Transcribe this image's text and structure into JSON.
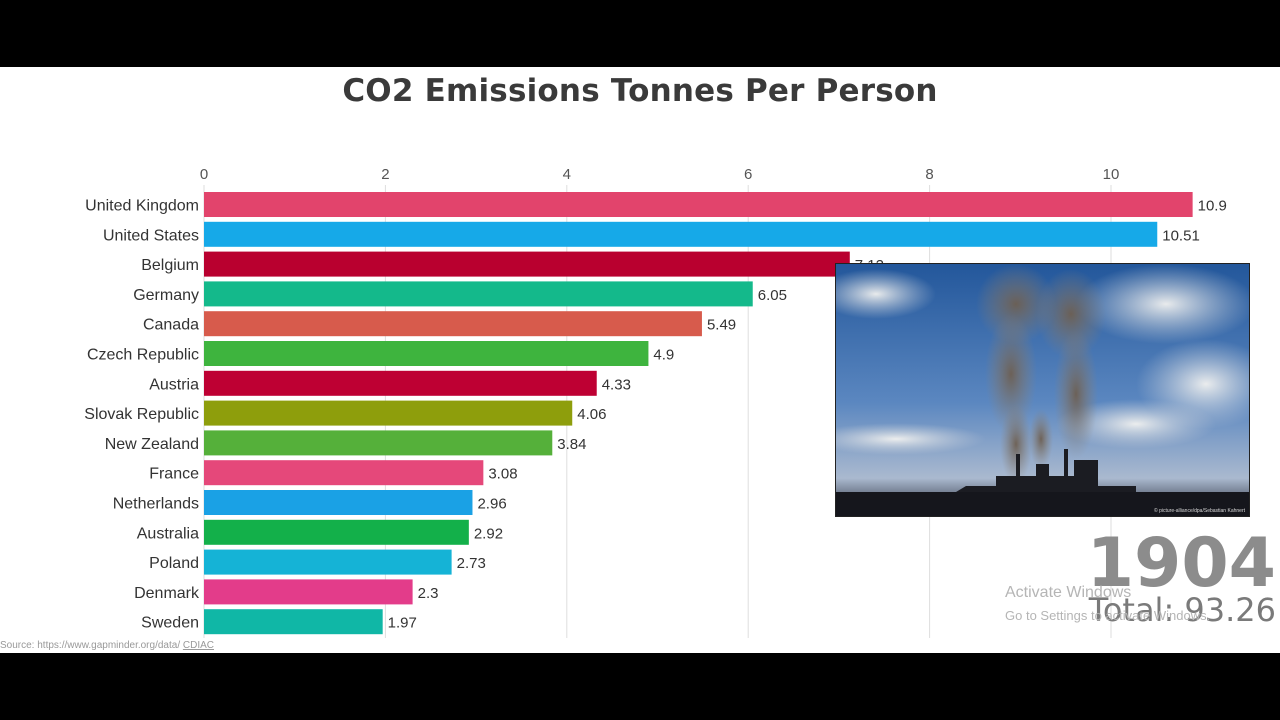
{
  "chart_data": {
    "type": "bar",
    "orientation": "horizontal",
    "title": "CO2 Emissions Tonnes Per Person",
    "xlim": [
      0,
      10.9
    ],
    "xticks": [
      0,
      2,
      4,
      6,
      8,
      10
    ],
    "grid": true,
    "categories": [
      "United Kingdom",
      "United States",
      "Belgium",
      "Germany",
      "Canada",
      "Czech Republic",
      "Austria",
      "Slovak Republic",
      "New Zealand",
      "France",
      "Netherlands",
      "Australia",
      "Poland",
      "Denmark",
      "Sweden"
    ],
    "values": [
      10.9,
      10.51,
      7.12,
      6.05,
      5.49,
      4.9,
      4.33,
      4.06,
      3.84,
      3.08,
      2.96,
      2.92,
      2.73,
      2.3,
      1.97
    ],
    "value_labels": [
      "10.9",
      "10.51",
      "7.12",
      "6.05",
      "5.49",
      "4.9",
      "4.33",
      "4.06",
      "3.84",
      "3.08",
      "2.96",
      "2.92",
      "2.73",
      "2.3",
      "1.97"
    ],
    "colors": [
      "#e2446c",
      "#16a9e8",
      "#b9002f",
      "#14b98b",
      "#d75b4c",
      "#3eb43e",
      "#be0033",
      "#8e9e0c",
      "#55b03a",
      "#e5487a",
      "#1aa1e5",
      "#13b04a",
      "#15b3d6",
      "#e33c8a",
      "#10b7a6"
    ]
  },
  "year": "1904",
  "total": "Total: 93.26",
  "photo": {
    "credit": "© picture-alliance/dpa/Sebastian Kahnert"
  },
  "watermark": {
    "title": "Activate Windows",
    "subtitle": "Go to Settings to activate Windows."
  },
  "source": {
    "prefix": "Source: https://www.gapminder.org/data/ ",
    "link": "CDIAC"
  }
}
